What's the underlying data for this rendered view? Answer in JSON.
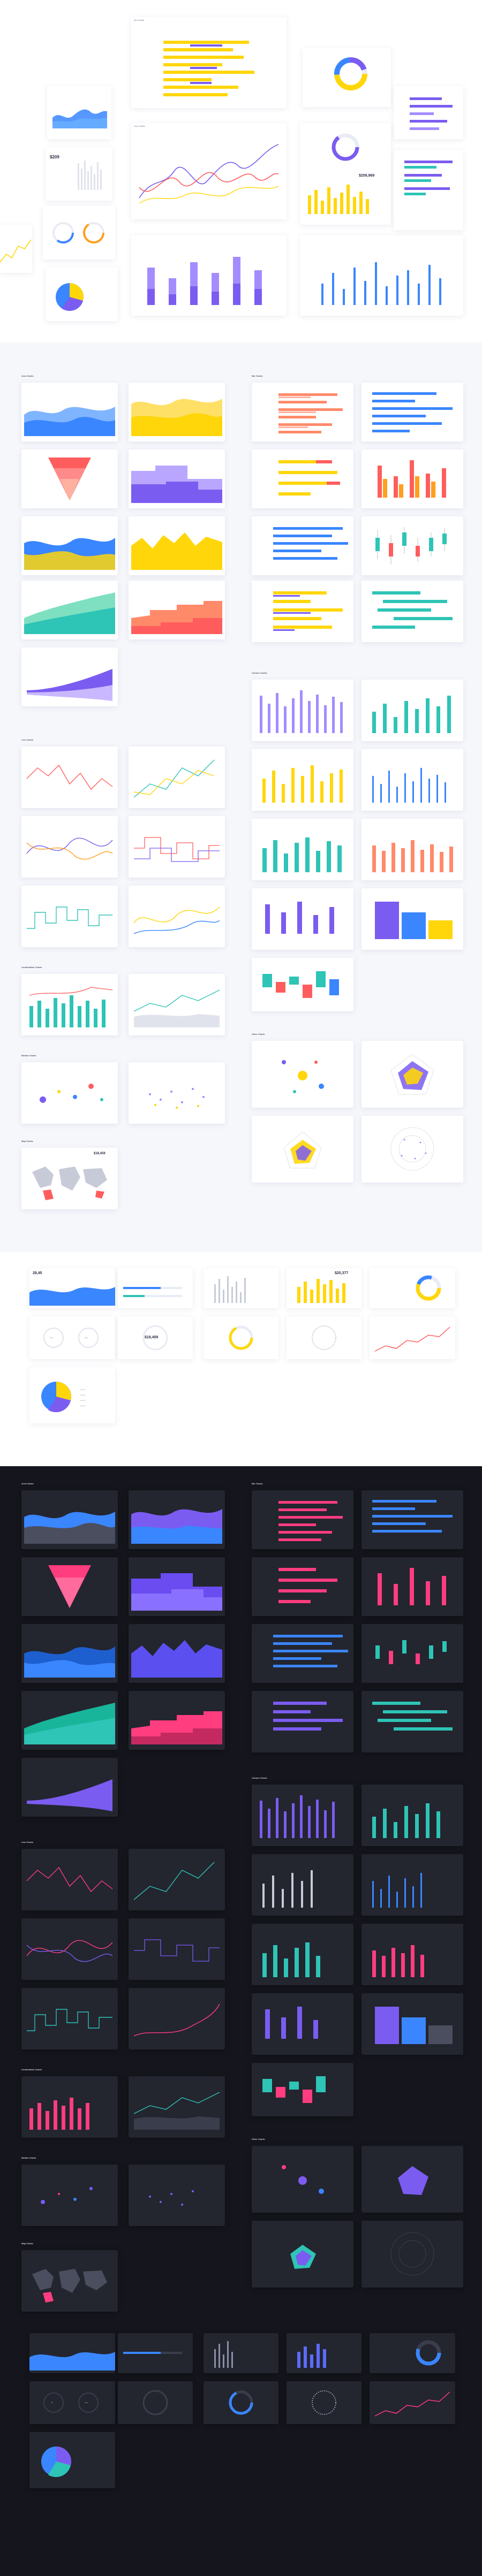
{
  "sections": {
    "area": "Area Charts",
    "bar": "Bar Charts",
    "line": "Line Charts",
    "column": "Column Charts",
    "combination": "Combination Charts",
    "bubble": "Bubble Charts",
    "map": "Map Charts",
    "other": "Other Charts"
  },
  "stats": {
    "value_a": "$209",
    "value_b": "28,45",
    "value_c": "$18,459",
    "value_d": "$18,459",
    "value_e": "$20,377",
    "value_f": "$259,969",
    "pct_a": "35%",
    "pct_b": "65%",
    "pct_c": "4%",
    "pct_d": "25%"
  },
  "legend": {
    "l1": "Label 1",
    "l2": "Label 2",
    "l3": "Label 3",
    "l4": "Label 4"
  },
  "colors": {
    "blue": "#3a86ff",
    "yellow": "#ffd60a",
    "purple": "#7b5cf0",
    "red": "#ff5d5d",
    "teal": "#2ec4b6",
    "orange": "#ff9f1c",
    "dark_bg": "#15161d"
  }
}
